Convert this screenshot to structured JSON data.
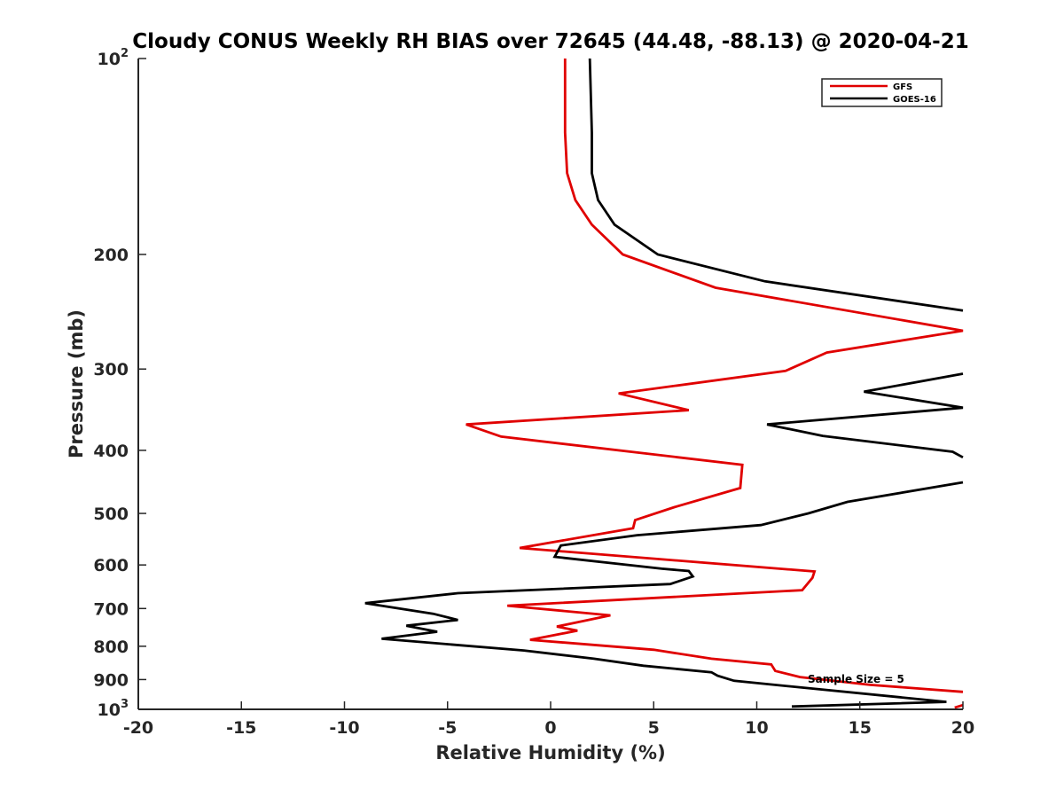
{
  "chart_data": {
    "type": "line",
    "title": "Cloudy CONUS Weekly RH BIAS over 72645 (44.48, -88.13) @ 2020-04-21",
    "xlabel": "Relative Humidity (%)",
    "ylabel": "Pressure (mb)",
    "xlim": [
      -20,
      20
    ],
    "ylim": [
      100,
      1000
    ],
    "yscale": "log",
    "y_reversed": true,
    "grid": false,
    "legend_position": "top-right",
    "x_ticks": [
      "-20",
      "-15",
      "-10",
      "-5",
      "0",
      "5",
      "10",
      "15",
      "20"
    ],
    "y_ticks": [
      {
        "value": 100,
        "base": "10",
        "exp": "2"
      },
      {
        "value": 200,
        "label": "200"
      },
      {
        "value": 300,
        "label": "300"
      },
      {
        "value": 400,
        "label": "400"
      },
      {
        "value": 500,
        "label": "500"
      },
      {
        "value": 600,
        "label": "600"
      },
      {
        "value": 700,
        "label": "700"
      },
      {
        "value": 800,
        "label": "800"
      },
      {
        "value": 900,
        "label": "900"
      },
      {
        "value": 1000,
        "base": "10",
        "exp": "3"
      }
    ],
    "annotation": "Sample Size = 5",
    "series": [
      {
        "name": "GFS",
        "color": "#e00000",
        "points": [
          [
            0.7,
            100
          ],
          [
            0.7,
            130
          ],
          [
            0.8,
            150
          ],
          [
            1.2,
            165
          ],
          [
            2.0,
            180
          ],
          [
            3.5,
            200
          ],
          [
            8.0,
            225
          ],
          [
            20.0,
            262
          ],
          [
            13.4,
            283
          ],
          [
            11.4,
            302
          ],
          [
            3.3,
            327
          ],
          [
            6.7,
            347
          ],
          [
            -4.1,
            365
          ],
          [
            -2.4,
            381
          ],
          [
            9.3,
            421
          ],
          [
            9.2,
            457
          ],
          [
            6.0,
            489
          ],
          [
            4.1,
            512
          ],
          [
            4.0,
            527
          ],
          [
            -1.5,
            565
          ],
          [
            12.8,
            614
          ],
          [
            12.7,
            628
          ],
          [
            12.2,
            656
          ],
          [
            -2.1,
            693
          ],
          [
            2.9,
            717
          ],
          [
            0.3,
            746
          ],
          [
            1.3,
            757
          ],
          [
            -1.0,
            782
          ],
          [
            5.0,
            810
          ],
          [
            7.8,
            836
          ],
          [
            10.7,
            853
          ],
          [
            10.9,
            873
          ],
          [
            12.1,
            892
          ],
          [
            15.5,
            917
          ],
          [
            20.0,
            940
          ],
          [
            null,
            null
          ],
          [
            19.6,
            994
          ],
          [
            20.0,
            985
          ]
        ]
      },
      {
        "name": "GOES-16",
        "color": "#000000",
        "points": [
          [
            1.9,
            100
          ],
          [
            2.0,
            130
          ],
          [
            2.0,
            150
          ],
          [
            2.3,
            165
          ],
          [
            3.1,
            180
          ],
          [
            5.2,
            200
          ],
          [
            10.4,
            220
          ],
          [
            20.0,
            244
          ],
          [
            null,
            null
          ],
          [
            20.0,
            305
          ],
          [
            15.2,
            325
          ],
          [
            20.0,
            344
          ],
          [
            10.5,
            365
          ],
          [
            13.2,
            380
          ],
          [
            19.5,
            402
          ],
          [
            20.0,
            410
          ],
          [
            null,
            null
          ],
          [
            20.0,
            448
          ],
          [
            14.4,
            480
          ],
          [
            12.5,
            500
          ],
          [
            10.2,
            521
          ],
          [
            4.2,
            540
          ],
          [
            0.5,
            560
          ],
          [
            0.2,
            583
          ],
          [
            5.4,
            608
          ],
          [
            6.7,
            613
          ],
          [
            6.9,
            625
          ],
          [
            5.8,
            642
          ],
          [
            -4.5,
            663
          ],
          [
            -9.0,
            687
          ],
          [
            -5.7,
            713
          ],
          [
            -4.5,
            729
          ],
          [
            -7.0,
            744
          ],
          [
            -5.5,
            760
          ],
          [
            -8.2,
            779
          ],
          [
            -1.3,
            812
          ],
          [
            2.1,
            836
          ],
          [
            4.5,
            857
          ],
          [
            7.8,
            877
          ],
          [
            8.1,
            888
          ],
          [
            8.9,
            904
          ],
          [
            19.2,
            974
          ],
          [
            11.7,
            990
          ]
        ]
      }
    ]
  }
}
